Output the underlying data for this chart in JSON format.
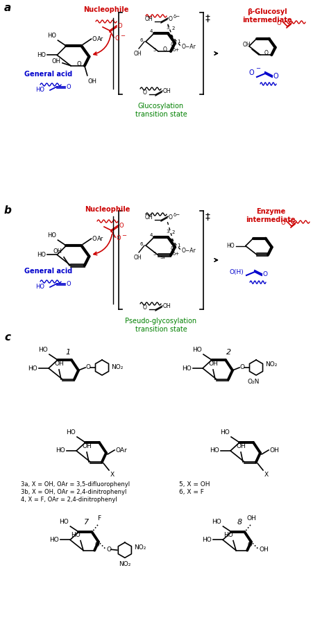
{
  "colors": {
    "red": "#CC0000",
    "blue": "#0000CC",
    "green": "#008000",
    "black": "#000000"
  },
  "panel_a": {
    "label": "a",
    "nucleophile": "Nucleophile",
    "general_acid": "General acid",
    "ts_label": "Glucosylation\ntransition state",
    "product_label": "β-Glucosyl\nintermediate"
  },
  "panel_b": {
    "label": "b",
    "nucleophile": "Nucleophile",
    "general_acid": "General acid",
    "ts_label": "Pseudo-glycosylation\ntransition state",
    "product_label": "Enzyme\nintermediate",
    "acid_product": "O(H)"
  },
  "panel_c": {
    "label": "c",
    "compound1": "1",
    "compound2": "2",
    "compound3_labels": [
      "3a, X = OH, OAr = 3,5-difluorophenyl",
      "3b, X = OH, OAr = 2,4-dinitrophenyl",
      "4, X = F, OAr = 2,4-dinitrophenyl"
    ],
    "compound5_labels": [
      "5, X = OH",
      "6, X = F"
    ],
    "compound7": "7",
    "compound8": "8"
  }
}
